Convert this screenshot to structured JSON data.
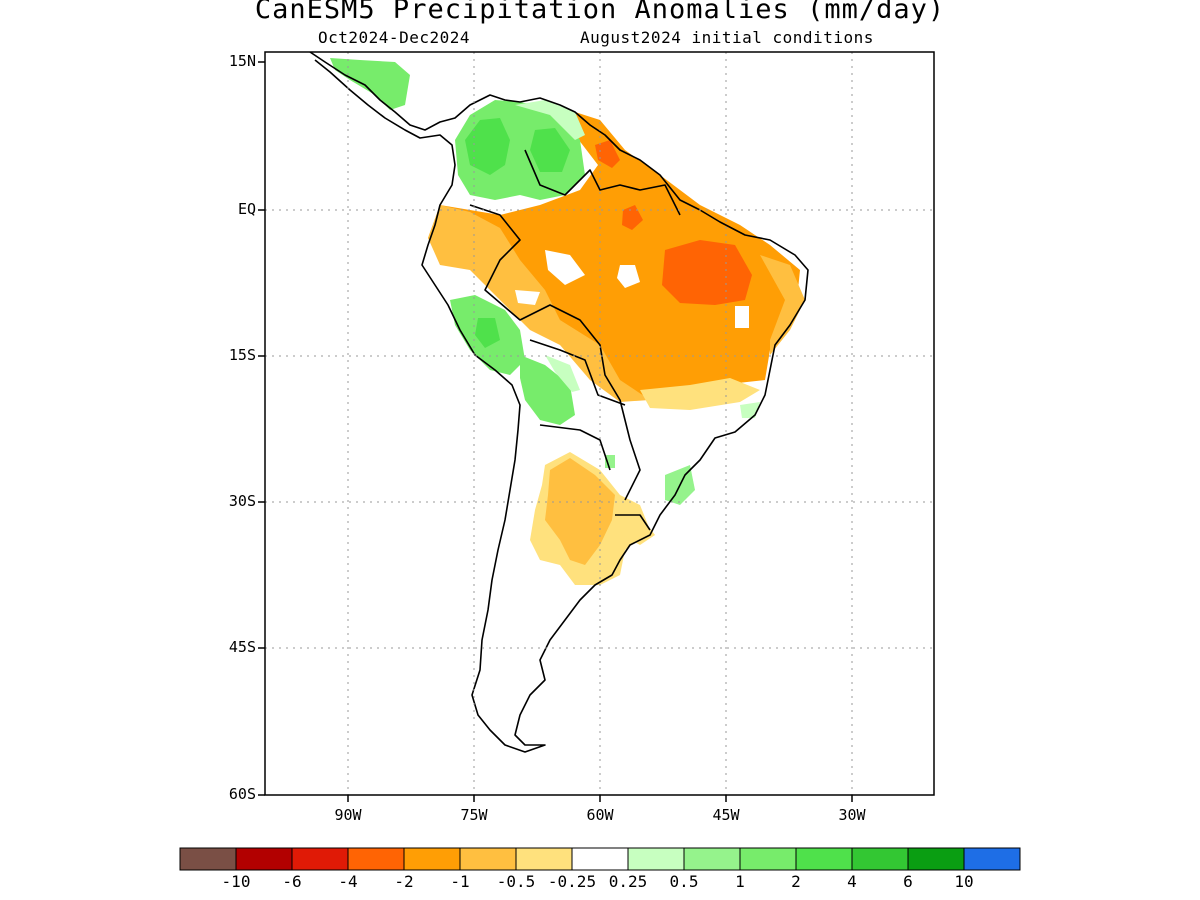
{
  "header": {
    "title": "CanESM5 Precipitation Anomalies (mm/day)",
    "period": "Oct2024-Dec2024",
    "init": "August2024 initial conditions"
  },
  "axes": {
    "lat_labels": [
      "15N",
      "EQ",
      "15S",
      "30S",
      "45S",
      "60S"
    ],
    "lon_labels": [
      "90W",
      "75W",
      "60W",
      "45W",
      "30W"
    ]
  },
  "colorbar": {
    "colors": [
      "#7a4f45",
      "#b20000",
      "#e01a06",
      "#ff6404",
      "#ff9e05",
      "#ffbf40",
      "#ffe17d",
      "#ffffff",
      "#c7ffc0",
      "#95f38c",
      "#77ec6b",
      "#4fe14b",
      "#33c733",
      "#0a9e12",
      "#1e6ee6"
    ],
    "labels": [
      "-10",
      "-6",
      "-4",
      "-2",
      "-1",
      "-0.5",
      "-0.25",
      "0.25",
      "0.5",
      "1",
      "2",
      "4",
      "6",
      "10"
    ]
  }
}
